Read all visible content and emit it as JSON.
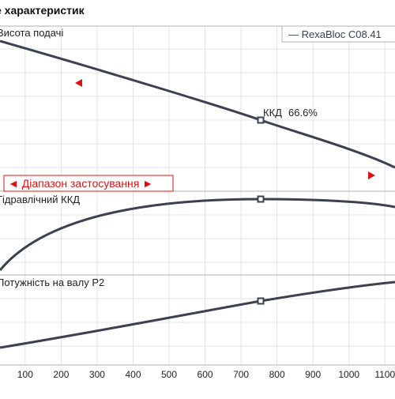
{
  "title": "е характеристик",
  "panels": [
    {
      "label": "Висота подачі"
    },
    {
      "label": "Гідравлічний ККД"
    },
    {
      "label": "Потужність на валу P2"
    }
  ],
  "legend": "— RexaBloc C08.41",
  "annotation": {
    "name": "ККД",
    "value": "66.6%"
  },
  "range_label": "◄ Діапазон застосування ►",
  "x_axis": {
    "xlim": [
      30,
      1128
    ],
    "xticks": [
      100,
      200,
      300,
      400,
      500,
      600,
      700,
      800,
      900,
      1000,
      1100
    ]
  }
}
